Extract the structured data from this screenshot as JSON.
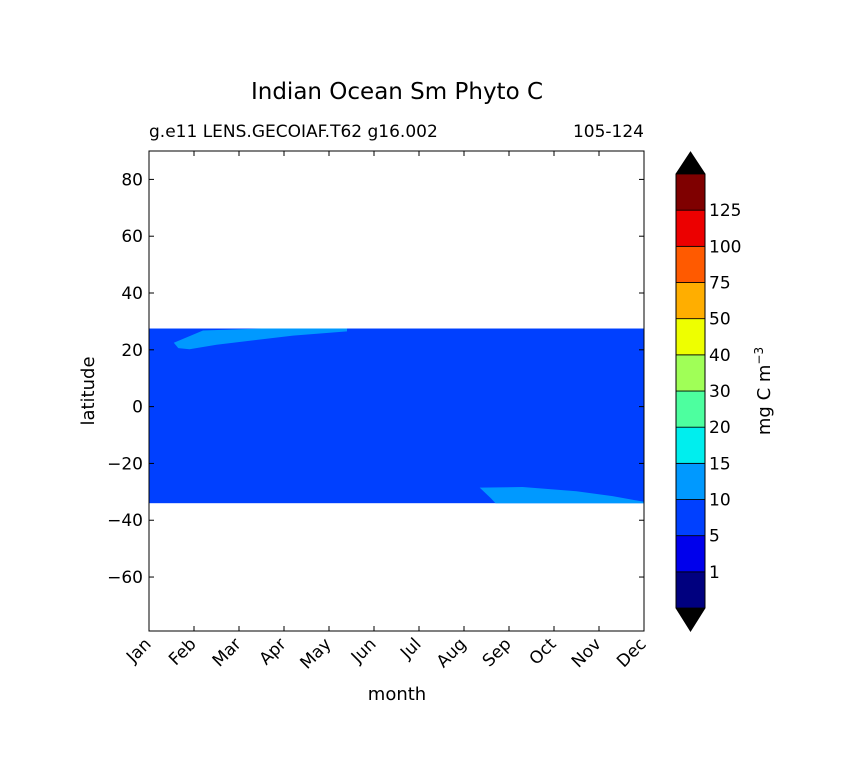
{
  "chart_data": {
    "type": "heatmap",
    "title": "Indian Ocean Sm Phyto C",
    "subtitle_left": "g.e11 LENS.GECOIAF.T62 g16.002",
    "subtitle_right": "105-124",
    "xlabel": "month",
    "ylabel": "latitude",
    "x_tick_labels": [
      "Jan",
      "Feb",
      "Mar",
      "Apr",
      "May",
      "Jun",
      "Jul",
      "Aug",
      "Sep",
      "Oct",
      "Nov",
      "Dec"
    ],
    "x_ticks": [
      1,
      2,
      3,
      4,
      5,
      6,
      7,
      8,
      9,
      10,
      11,
      12
    ],
    "xlim": [
      1,
      12
    ],
    "y_ticks": [
      80,
      60,
      40,
      20,
      0,
      -20,
      -40,
      -60
    ],
    "y_tick_labels": [
      "80",
      "60",
      "40",
      "20",
      "0",
      "−20",
      "−40",
      "−60"
    ],
    "ylim": [
      -79,
      90
    ],
    "data_region": {
      "lat_north": 27.5,
      "lat_south": -34,
      "dominant_level_range": [
        5,
        10
      ],
      "dominant_color": "#0040ff"
    },
    "patches": [
      {
        "level_range": [
          10,
          15
        ],
        "color": "#0099ff",
        "outline": [
          [
            1.55,
            22.5
          ],
          [
            2.2,
            26.8
          ],
          [
            3.5,
            27.5
          ],
          [
            5.4,
            27.5
          ],
          [
            5.4,
            26.5
          ],
          [
            4.2,
            25
          ],
          [
            3.4,
            23.5
          ],
          [
            2.5,
            21.8
          ],
          [
            1.9,
            20.2
          ],
          [
            1.65,
            20.6
          ]
        ]
      },
      {
        "level_range": [
          10,
          15
        ],
        "color": "#0099ff",
        "outline": [
          [
            8.35,
            -28.5
          ],
          [
            9.3,
            -28.3
          ],
          [
            10.5,
            -29.8
          ],
          [
            11.3,
            -31.5
          ],
          [
            12,
            -33.5
          ],
          [
            12,
            -34
          ],
          [
            8.7,
            -34
          ],
          [
            8.6,
            -32.3
          ]
        ]
      }
    ],
    "colorbar": {
      "label": "mg C m",
      "label_superscript": "−3",
      "extend": "both",
      "tick_labels": [
        "1",
        "5",
        "10",
        "15",
        "20",
        "30",
        "40",
        "50",
        "75",
        "100",
        "125"
      ],
      "colors": [
        "#00007f",
        "#0000ec",
        "#0040ff",
        "#0099ff",
        "#00eeee",
        "#4dff9f",
        "#a0ff57",
        "#eeff00",
        "#ffae00",
        "#ff5a00",
        "#ec0000",
        "#7f0000"
      ],
      "under_color": "#000000",
      "over_color": "#000000"
    }
  }
}
